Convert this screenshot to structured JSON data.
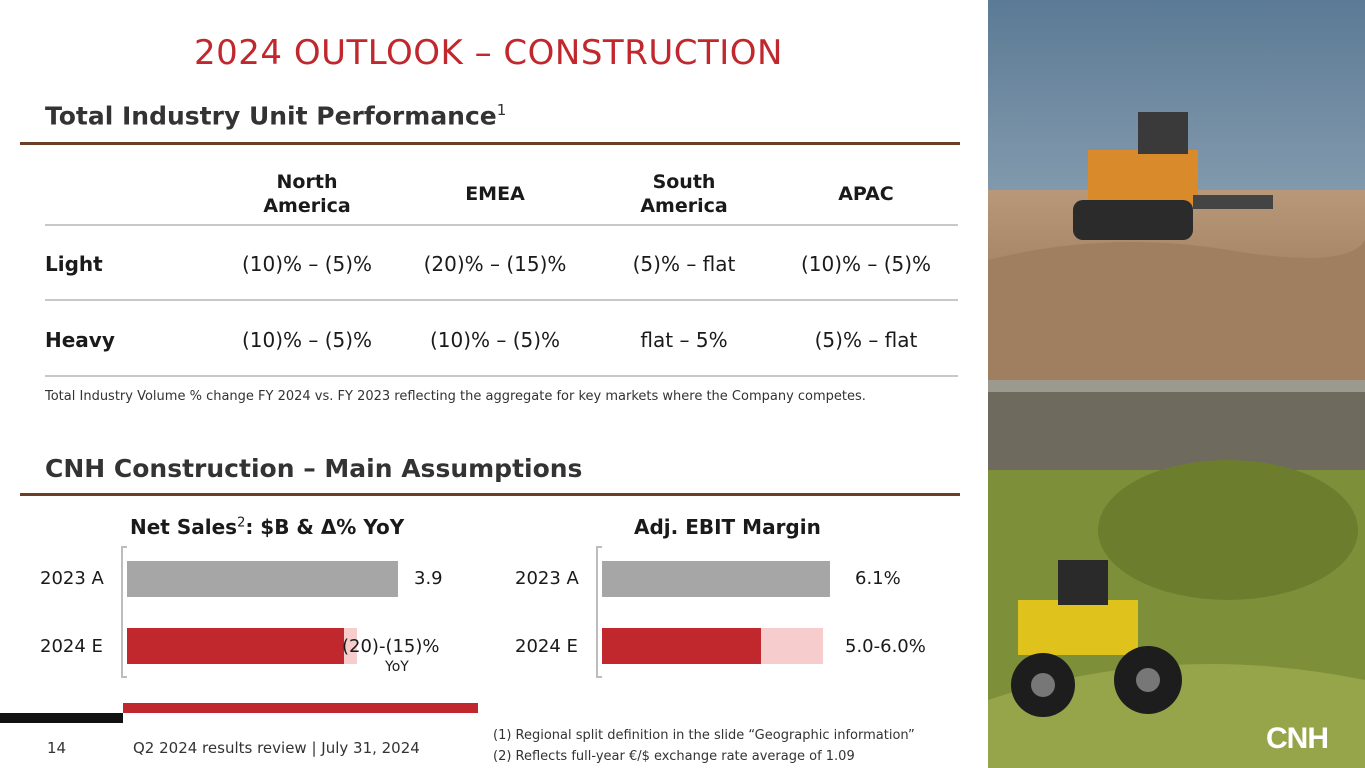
{
  "title": "2024 OUTLOOK – CONSTRUCTION",
  "section1": {
    "heading": "Total Industry Unit Performance",
    "sup": "1"
  },
  "table": {
    "columns": [
      "North\nAmerica",
      "EMEA",
      "South\nAmerica",
      "APAC"
    ],
    "rows": [
      {
        "label": "Light",
        "values": [
          "(10)% – (5)%",
          "(20)% – (15)%",
          "(5)% – flat",
          "(10)% – (5)%"
        ]
      },
      {
        "label": "Heavy",
        "values": [
          "(10)% – (5)%",
          "(10)% – (5)%",
          "flat – 5%",
          "(5)% – flat"
        ]
      }
    ],
    "note": "Total Industry Volume % change FY 2024 vs. FY 2023 reflecting the aggregate for key markets where the Company competes."
  },
  "section2": {
    "heading": "CNH Construction – Main Assumptions"
  },
  "chart_data": [
    {
      "type": "bar",
      "title": "Net Sales",
      "title_sup": "2",
      "title_suffix": ": $B & Δ% YoY",
      "categories": [
        "2023 A",
        "2024 E"
      ],
      "values": [
        3.9,
        null
      ],
      "range_2024_pct": [
        -20,
        -15
      ],
      "labels": [
        "3.9",
        "(20)-(15)%"
      ],
      "label_note": "YoY",
      "colors": {
        "actual": "#a6a6a6",
        "estimate": "#c0282d",
        "range": "#f6cccc"
      }
    },
    {
      "type": "bar",
      "title": "Adj. EBIT Margin",
      "categories": [
        "2023 A",
        "2024 E"
      ],
      "values": [
        6.1,
        null
      ],
      "range_2024": [
        5.0,
        6.0
      ],
      "labels": [
        "6.1%",
        "5.0-6.0%"
      ],
      "colors": {
        "actual": "#a6a6a6",
        "estimate": "#c0282d",
        "range": "#f6cccc"
      }
    }
  ],
  "footer": {
    "page": "14",
    "text": "Q2 2024 results review | July 31, 2024",
    "footnotes": [
      "(1) Regional split definition in the slide “Geographic information”",
      "(2) Reflects full-year €/$ exchange rate average of 1.09"
    ]
  },
  "logo": "CNH",
  "colors": {
    "accent": "#c0282d",
    "rule": "#6b3e26"
  }
}
